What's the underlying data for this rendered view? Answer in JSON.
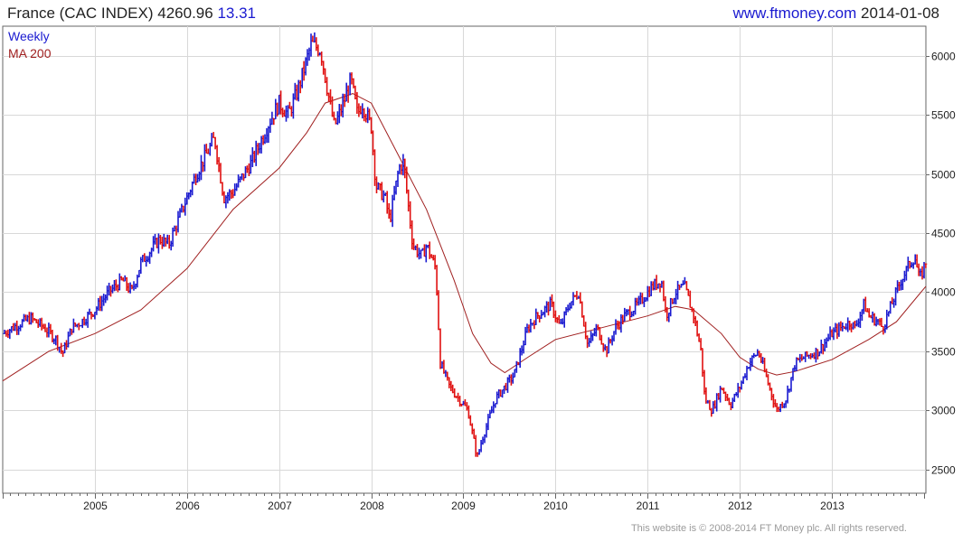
{
  "header": {
    "title": "France (CAC INDEX)",
    "last": "4260.96",
    "change": "13.31",
    "site": "www.ftmoney.com",
    "date": "2014-01-08"
  },
  "legend": {
    "weekly_label": "Weekly",
    "ma_label": "MA 200"
  },
  "footer": {
    "text": "This website is © 2008-2014 FT Money plc. All rights reserved."
  },
  "colors": {
    "up": "#1a1ad0",
    "down": "#e01010",
    "ma": "#a02020",
    "grid": "#d8d8d8",
    "axis_text": "#222222"
  },
  "chart_data": {
    "type": "line",
    "title": "France (CAC INDEX)",
    "frequency": "Weekly",
    "price_style": "weekly price bars, blue up / red down",
    "ylim": [
      2300,
      6250
    ],
    "yticks": [
      2500,
      3000,
      3500,
      4000,
      4500,
      5000,
      5500,
      6000
    ],
    "xlim": [
      2004.0,
      2014.02
    ],
    "xticks": [
      "2005",
      "2006",
      "2007",
      "2008",
      "2009",
      "2010",
      "2011",
      "2012",
      "2013"
    ],
    "grid": true,
    "legend_position": "top-left",
    "price_series": {
      "name": "Weekly",
      "points": [
        [
          2004.0,
          3650
        ],
        [
          2004.15,
          3720
        ],
        [
          2004.3,
          3780
        ],
        [
          2004.45,
          3700
        ],
        [
          2004.58,
          3600
        ],
        [
          2004.65,
          3480
        ],
        [
          2004.75,
          3700
        ],
        [
          2004.85,
          3750
        ],
        [
          2005.0,
          3850
        ],
        [
          2005.15,
          4000
        ],
        [
          2005.3,
          4100
        ],
        [
          2005.4,
          4000
        ],
        [
          2005.5,
          4250
        ],
        [
          2005.7,
          4450
        ],
        [
          2005.8,
          4400
        ],
        [
          2005.95,
          4700
        ],
        [
          2006.1,
          5000
        ],
        [
          2006.3,
          5300
        ],
        [
          2006.4,
          4800
        ],
        [
          2006.5,
          4850
        ],
        [
          2006.7,
          5100
        ],
        [
          2006.9,
          5450
        ],
        [
          2007.0,
          5600
        ],
        [
          2007.1,
          5500
        ],
        [
          2007.2,
          5700
        ],
        [
          2007.35,
          6100
        ],
        [
          2007.45,
          6050
        ],
        [
          2007.55,
          5600
        ],
        [
          2007.6,
          5400
        ],
        [
          2007.7,
          5600
        ],
        [
          2007.78,
          5800
        ],
        [
          2007.85,
          5500
        ],
        [
          2007.9,
          5600
        ],
        [
          2008.0,
          5400
        ],
        [
          2008.05,
          4900
        ],
        [
          2008.15,
          4800
        ],
        [
          2008.2,
          4600
        ],
        [
          2008.3,
          5050
        ],
        [
          2008.35,
          5100
        ],
        [
          2008.45,
          4400
        ],
        [
          2008.55,
          4300
        ],
        [
          2008.6,
          4400
        ],
        [
          2008.7,
          4200
        ],
        [
          2008.75,
          3400
        ],
        [
          2008.85,
          3200
        ],
        [
          2008.95,
          3100
        ],
        [
          2009.05,
          3000
        ],
        [
          2009.15,
          2600
        ],
        [
          2009.2,
          2750
        ],
        [
          2009.35,
          3100
        ],
        [
          2009.45,
          3200
        ],
        [
          2009.55,
          3300
        ],
        [
          2009.7,
          3700
        ],
        [
          2009.8,
          3800
        ],
        [
          2009.95,
          3900
        ],
        [
          2010.05,
          3700
        ],
        [
          2010.15,
          3900
        ],
        [
          2010.25,
          4000
        ],
        [
          2010.35,
          3550
        ],
        [
          2010.45,
          3700
        ],
        [
          2010.55,
          3500
        ],
        [
          2010.65,
          3700
        ],
        [
          2010.75,
          3800
        ],
        [
          2010.9,
          3900
        ],
        [
          2011.05,
          4050
        ],
        [
          2011.15,
          4100
        ],
        [
          2011.2,
          3800
        ],
        [
          2011.3,
          4000
        ],
        [
          2011.4,
          4050
        ],
        [
          2011.5,
          3800
        ],
        [
          2011.58,
          3500
        ],
        [
          2011.62,
          3100
        ],
        [
          2011.7,
          3000
        ],
        [
          2011.8,
          3200
        ],
        [
          2011.9,
          3050
        ],
        [
          2012.0,
          3200
        ],
        [
          2012.1,
          3400
        ],
        [
          2012.2,
          3500
        ],
        [
          2012.3,
          3250
        ],
        [
          2012.4,
          3000
        ],
        [
          2012.5,
          3100
        ],
        [
          2012.6,
          3400
        ],
        [
          2012.7,
          3450
        ],
        [
          2012.85,
          3500
        ],
        [
          2013.0,
          3650
        ],
        [
          2013.1,
          3700
        ],
        [
          2013.2,
          3750
        ],
        [
          2013.25,
          3700
        ],
        [
          2013.35,
          3900
        ],
        [
          2013.4,
          3800
        ],
        [
          2013.5,
          3750
        ],
        [
          2013.55,
          3700
        ],
        [
          2013.65,
          3900
        ],
        [
          2013.75,
          4100
        ],
        [
          2013.85,
          4250
        ],
        [
          2013.9,
          4300
        ],
        [
          2013.95,
          4100
        ],
        [
          2014.02,
          4260
        ]
      ]
    },
    "ma_series": {
      "name": "MA 200",
      "points": [
        [
          2004.0,
          3250
        ],
        [
          2004.5,
          3500
        ],
        [
          2005.0,
          3650
        ],
        [
          2005.5,
          3850
        ],
        [
          2006.0,
          4200
        ],
        [
          2006.5,
          4700
        ],
        [
          2007.0,
          5050
        ],
        [
          2007.3,
          5350
        ],
        [
          2007.5,
          5600
        ],
        [
          2007.8,
          5680
        ],
        [
          2008.0,
          5600
        ],
        [
          2008.3,
          5150
        ],
        [
          2008.6,
          4700
        ],
        [
          2008.9,
          4100
        ],
        [
          2009.1,
          3650
        ],
        [
          2009.3,
          3400
        ],
        [
          2009.45,
          3320
        ],
        [
          2009.7,
          3450
        ],
        [
          2010.0,
          3600
        ],
        [
          2010.5,
          3700
        ],
        [
          2011.0,
          3800
        ],
        [
          2011.3,
          3880
        ],
        [
          2011.5,
          3850
        ],
        [
          2011.8,
          3650
        ],
        [
          2012.0,
          3450
        ],
        [
          2012.2,
          3350
        ],
        [
          2012.4,
          3300
        ],
        [
          2012.6,
          3330
        ],
        [
          2013.0,
          3430
        ],
        [
          2013.4,
          3600
        ],
        [
          2013.7,
          3750
        ],
        [
          2014.02,
          4050
        ]
      ]
    }
  }
}
